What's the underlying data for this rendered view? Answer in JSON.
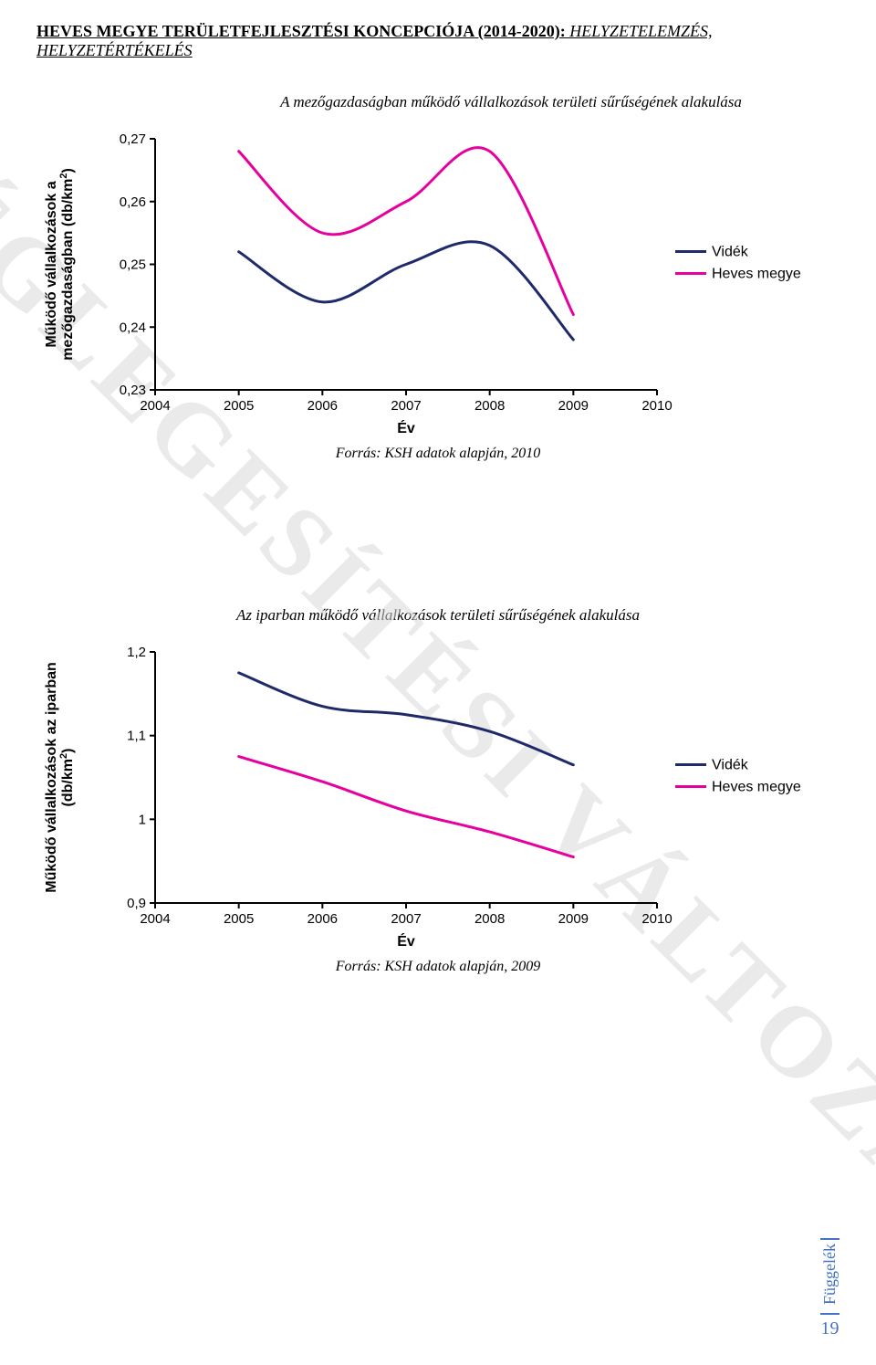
{
  "header": {
    "bold_part": "HEVES MEGYE TERÜLETFEJLESZTÉSI KONCEPCIÓJA (2014-2020):",
    "italic_part": " HELYZETELEMZÉS, HELYZETÉRTÉKELÉS"
  },
  "watermark": "VÉGLEGESÍTÉSI VÁLTOZAT",
  "chart1": {
    "type": "line",
    "title": "A mezőgazdaságban működő vállalkozások területi sűrűségének alakulása",
    "source": "Forrás: KSH adatok alapján, 2010",
    "ylabel": "Működő vállalkozások a\nmezőgazdaságban (db/km²)",
    "xlabel": "Év",
    "xlim": [
      2004,
      2010
    ],
    "xticks": [
      2004,
      2005,
      2006,
      2007,
      2008,
      2009,
      2010
    ],
    "ylim": [
      0.23,
      0.27
    ],
    "yticks": [
      0.23,
      0.24,
      0.25,
      0.26,
      0.27
    ],
    "ytick_labels": [
      "0,23",
      "0,24",
      "0,25",
      "0,26",
      "0,27"
    ],
    "series": [
      {
        "name": "Vidék",
        "color": "#1f2a6b",
        "line_width": 3,
        "x": [
          2005,
          2006,
          2007,
          2008,
          2009
        ],
        "y": [
          0.252,
          0.244,
          0.25,
          0.253,
          0.238
        ]
      },
      {
        "name": "Heves megye",
        "color": "#e6009e",
        "line_width": 3,
        "x": [
          2005,
          2006,
          2007,
          2008,
          2009
        ],
        "y": [
          0.268,
          0.255,
          0.26,
          0.268,
          0.242
        ]
      }
    ],
    "legend_pos": "right",
    "background_color": "#ffffff",
    "axis_color": "#000000"
  },
  "chart2": {
    "type": "line",
    "title": "Az iparban működő vállalkozások területi sűrűségének alakulása",
    "source": "Forrás: KSH adatok alapján, 2009",
    "ylabel": "Működő vállalkozások az iparban\n(db/km²)",
    "xlabel": "Év",
    "xlim": [
      2004,
      2010
    ],
    "xticks": [
      2004,
      2005,
      2006,
      2007,
      2008,
      2009,
      2010
    ],
    "ylim": [
      0.9,
      1.2
    ],
    "yticks": [
      0.9,
      1.0,
      1.1,
      1.2
    ],
    "ytick_labels": [
      "0,9",
      "1",
      "1,1",
      "1,2"
    ],
    "series": [
      {
        "name": "Vidék",
        "color": "#1f2a6b",
        "line_width": 3,
        "x": [
          2005,
          2006,
          2007,
          2008,
          2009
        ],
        "y": [
          1.175,
          1.135,
          1.125,
          1.105,
          1.065
        ]
      },
      {
        "name": "Heves megye",
        "color": "#e6009e",
        "line_width": 3,
        "x": [
          2005,
          2006,
          2007,
          2008,
          2009
        ],
        "y": [
          1.075,
          1.045,
          1.01,
          0.985,
          0.955
        ]
      }
    ],
    "legend_pos": "right",
    "background_color": "#ffffff",
    "axis_color": "#000000"
  },
  "footer": {
    "label": "Függelék",
    "page": "19"
  }
}
